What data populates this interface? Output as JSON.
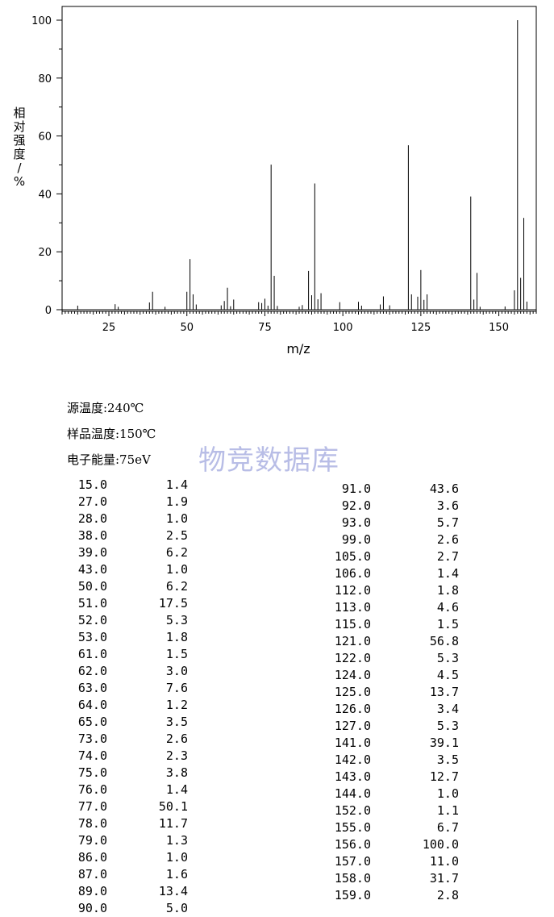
{
  "chart_data": {
    "type": "bar",
    "title": "",
    "xlabel": "m/z",
    "ylabel": "相对强度/%",
    "xlim": [
      10,
      162
    ],
    "ylim": [
      0,
      100
    ],
    "x_ticks": [
      25,
      50,
      75,
      100,
      125,
      150
    ],
    "y_ticks": [
      0,
      20,
      40,
      60,
      80,
      100
    ],
    "peaks": [
      {
        "mz": 15.0,
        "intensity": 1.4
      },
      {
        "mz": 27.0,
        "intensity": 1.9
      },
      {
        "mz": 28.0,
        "intensity": 1.0
      },
      {
        "mz": 38.0,
        "intensity": 2.5
      },
      {
        "mz": 39.0,
        "intensity": 6.2
      },
      {
        "mz": 43.0,
        "intensity": 1.0
      },
      {
        "mz": 50.0,
        "intensity": 6.2
      },
      {
        "mz": 51.0,
        "intensity": 17.5
      },
      {
        "mz": 52.0,
        "intensity": 5.3
      },
      {
        "mz": 53.0,
        "intensity": 1.8
      },
      {
        "mz": 61.0,
        "intensity": 1.5
      },
      {
        "mz": 62.0,
        "intensity": 3.0
      },
      {
        "mz": 63.0,
        "intensity": 7.6
      },
      {
        "mz": 64.0,
        "intensity": 1.2
      },
      {
        "mz": 65.0,
        "intensity": 3.5
      },
      {
        "mz": 73.0,
        "intensity": 2.6
      },
      {
        "mz": 74.0,
        "intensity": 2.3
      },
      {
        "mz": 75.0,
        "intensity": 3.8
      },
      {
        "mz": 76.0,
        "intensity": 1.4
      },
      {
        "mz": 77.0,
        "intensity": 50.1
      },
      {
        "mz": 78.0,
        "intensity": 11.7
      },
      {
        "mz": 79.0,
        "intensity": 1.3
      },
      {
        "mz": 86.0,
        "intensity": 1.0
      },
      {
        "mz": 87.0,
        "intensity": 1.6
      },
      {
        "mz": 89.0,
        "intensity": 13.4
      },
      {
        "mz": 90.0,
        "intensity": 5.0
      },
      {
        "mz": 91.0,
        "intensity": 43.6
      },
      {
        "mz": 92.0,
        "intensity": 3.6
      },
      {
        "mz": 93.0,
        "intensity": 5.7
      },
      {
        "mz": 99.0,
        "intensity": 2.6
      },
      {
        "mz": 105.0,
        "intensity": 2.7
      },
      {
        "mz": 106.0,
        "intensity": 1.4
      },
      {
        "mz": 112.0,
        "intensity": 1.8
      },
      {
        "mz": 113.0,
        "intensity": 4.6
      },
      {
        "mz": 115.0,
        "intensity": 1.5
      },
      {
        "mz": 121.0,
        "intensity": 56.8
      },
      {
        "mz": 122.0,
        "intensity": 5.3
      },
      {
        "mz": 124.0,
        "intensity": 4.5
      },
      {
        "mz": 125.0,
        "intensity": 13.7
      },
      {
        "mz": 126.0,
        "intensity": 3.4
      },
      {
        "mz": 127.0,
        "intensity": 5.3
      },
      {
        "mz": 141.0,
        "intensity": 39.1
      },
      {
        "mz": 142.0,
        "intensity": 3.5
      },
      {
        "mz": 143.0,
        "intensity": 12.7
      },
      {
        "mz": 144.0,
        "intensity": 1.0
      },
      {
        "mz": 152.0,
        "intensity": 1.1
      },
      {
        "mz": 155.0,
        "intensity": 6.7
      },
      {
        "mz": 156.0,
        "intensity": 100.0
      },
      {
        "mz": 157.0,
        "intensity": 11.0
      },
      {
        "mz": 158.0,
        "intensity": 31.7
      },
      {
        "mz": 159.0,
        "intensity": 2.8
      }
    ]
  },
  "conditions": {
    "source_temp": "源温度:240℃",
    "sample_temp": "样品温度:150℃",
    "electron_energy": "电子能量:75eV"
  },
  "watermark": "物竞数据库",
  "peak_table": {
    "left": [
      [
        "15.0",
        "1.4"
      ],
      [
        "27.0",
        "1.9"
      ],
      [
        "28.0",
        "1.0"
      ],
      [
        "38.0",
        "2.5"
      ],
      [
        "39.0",
        "6.2"
      ],
      [
        "43.0",
        "1.0"
      ],
      [
        "50.0",
        "6.2"
      ],
      [
        "51.0",
        "17.5"
      ],
      [
        "52.0",
        "5.3"
      ],
      [
        "53.0",
        "1.8"
      ],
      [
        "61.0",
        "1.5"
      ],
      [
        "62.0",
        "3.0"
      ],
      [
        "63.0",
        "7.6"
      ],
      [
        "64.0",
        "1.2"
      ],
      [
        "65.0",
        "3.5"
      ],
      [
        "73.0",
        "2.6"
      ],
      [
        "74.0",
        "2.3"
      ],
      [
        "75.0",
        "3.8"
      ],
      [
        "76.0",
        "1.4"
      ],
      [
        "77.0",
        "50.1"
      ],
      [
        "78.0",
        "11.7"
      ],
      [
        "79.0",
        "1.3"
      ],
      [
        "86.0",
        "1.0"
      ],
      [
        "87.0",
        "1.6"
      ],
      [
        "89.0",
        "13.4"
      ],
      [
        "90.0",
        "5.0"
      ]
    ],
    "right": [
      [
        "91.0",
        "43.6"
      ],
      [
        "92.0",
        "3.6"
      ],
      [
        "93.0",
        "5.7"
      ],
      [
        "99.0",
        "2.6"
      ],
      [
        "105.0",
        "2.7"
      ],
      [
        "106.0",
        "1.4"
      ],
      [
        "112.0",
        "1.8"
      ],
      [
        "113.0",
        "4.6"
      ],
      [
        "115.0",
        "1.5"
      ],
      [
        "121.0",
        "56.8"
      ],
      [
        "122.0",
        "5.3"
      ],
      [
        "124.0",
        "4.5"
      ],
      [
        "125.0",
        "13.7"
      ],
      [
        "126.0",
        "3.4"
      ],
      [
        "127.0",
        "5.3"
      ],
      [
        "141.0",
        "39.1"
      ],
      [
        "142.0",
        "3.5"
      ],
      [
        "143.0",
        "12.7"
      ],
      [
        "144.0",
        "1.0"
      ],
      [
        "152.0",
        "1.1"
      ],
      [
        "155.0",
        "6.7"
      ],
      [
        "156.0",
        "100.0"
      ],
      [
        "157.0",
        "11.0"
      ],
      [
        "158.0",
        "31.7"
      ],
      [
        "159.0",
        "2.8"
      ]
    ]
  }
}
